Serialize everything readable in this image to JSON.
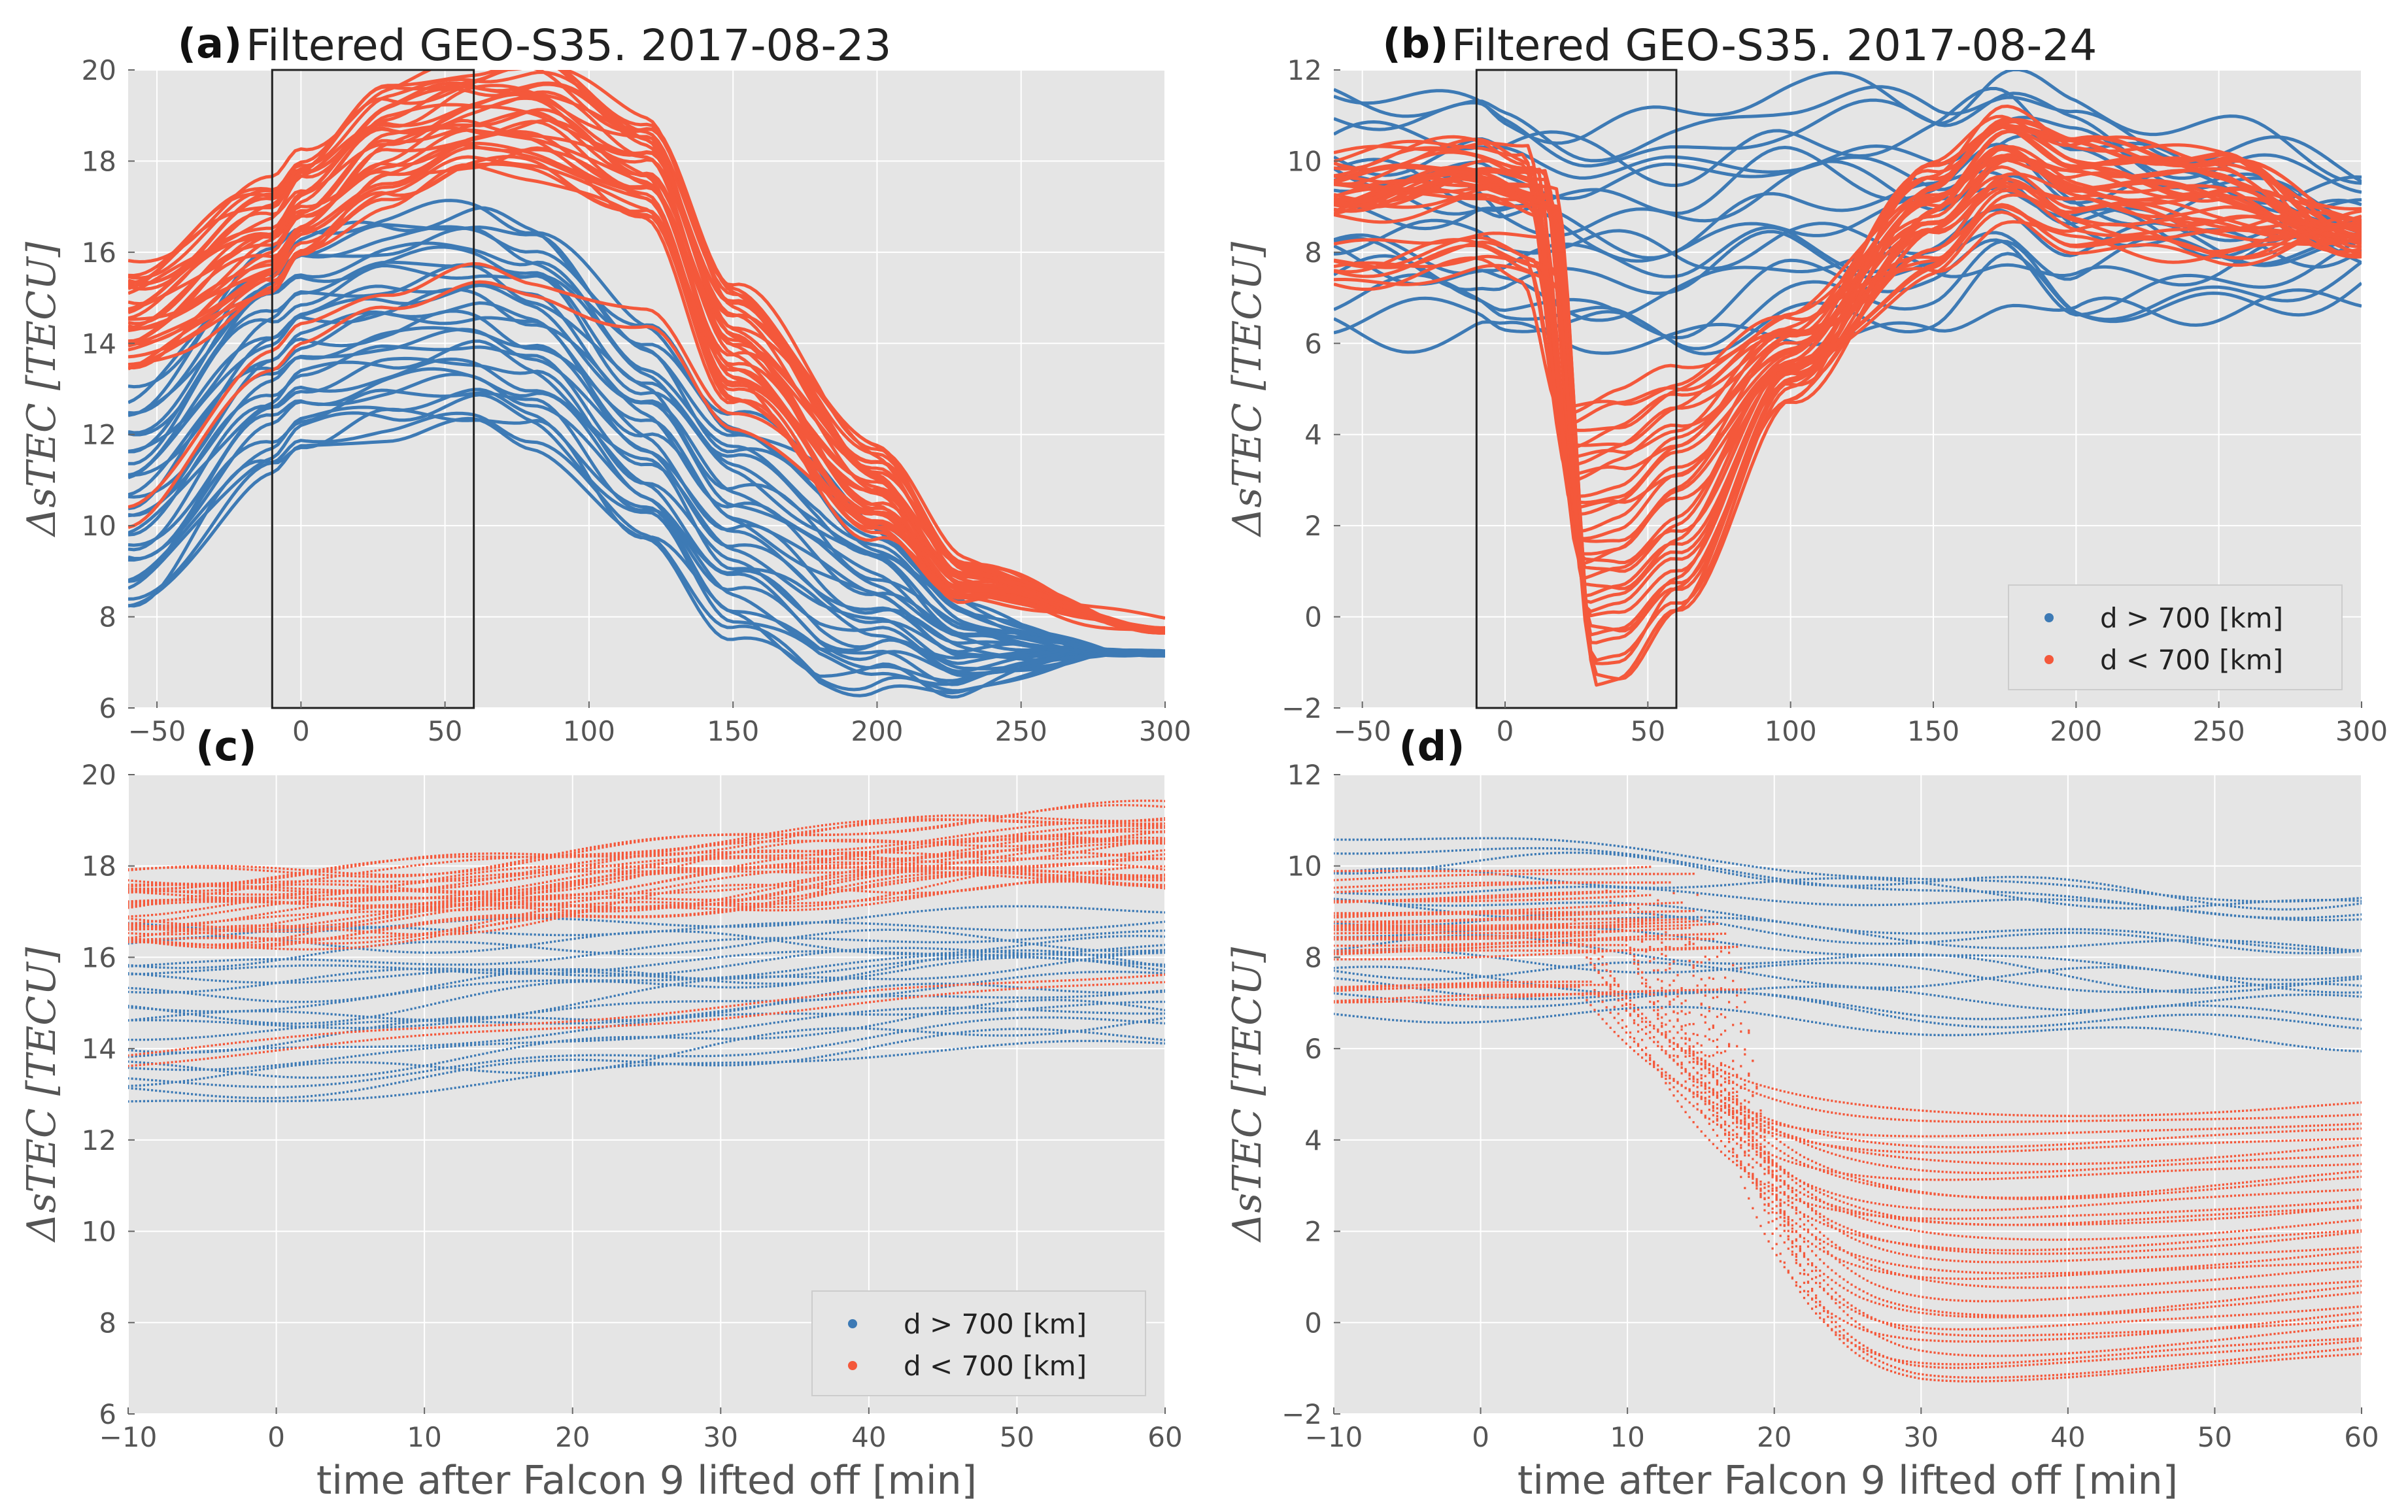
{
  "colors": {
    "far": "#3d7ab5",
    "near": "#f4583b",
    "plot_bg": "#e5e5e5",
    "grid": "#ffffff",
    "window_box": "#222222"
  },
  "xlabel_bottom": "time after Falcon 9 lifted off [min]",
  "legend": {
    "far": "d > 700 [km]",
    "near": "d < 700 [km]"
  },
  "chart_data": [
    {
      "id": "a",
      "type": "line",
      "letter": "(a)",
      "title": "Filtered GEO-S35. 2017-08-23",
      "ylabel": "ΔsTEC [TECU]",
      "xlim": [
        -60,
        300
      ],
      "ylim": [
        6,
        20
      ],
      "xticks": [
        -50,
        0,
        50,
        100,
        150,
        200,
        250,
        300
      ],
      "yticks": [
        6,
        8,
        10,
        12,
        14,
        16,
        18,
        20
      ],
      "window": [
        -10,
        60
      ],
      "series_groups": [
        {
          "name": "d > 700 [km]",
          "color": "#3d7ab5",
          "count": 30,
          "base_x": [
            -60,
            -10,
            0,
            30,
            60,
            80,
            120,
            150,
            200,
            230,
            300
          ],
          "base_y": [
            10.5,
            13.5,
            14.0,
            14.4,
            14.6,
            14.2,
            12.0,
            10.0,
            8.3,
            7.3,
            7.2
          ],
          "spread": 2.4
        },
        {
          "name": "d < 700 [km]",
          "color": "#f4583b",
          "count": 30,
          "base_x": [
            -60,
            -10,
            0,
            30,
            60,
            80,
            120,
            150,
            200,
            230,
            300
          ],
          "base_y": [
            14.5,
            16.3,
            17.0,
            18.4,
            18.9,
            19.0,
            17.8,
            14.0,
            10.8,
            8.8,
            7.7
          ],
          "spread": 1.2,
          "low_tail": {
            "count": 2,
            "base_y": [
              10.0,
              13.5,
              14.0,
              14.8,
              15.3,
              15.0,
              14.3,
              12.2,
              10.0,
              8.5,
              7.6
            ]
          }
        }
      ]
    },
    {
      "id": "b",
      "type": "line",
      "letter": "(b)",
      "title": "Filtered GEO-S35. 2017-08-24",
      "ylabel": "ΔsTEC [TECU]",
      "xlim": [
        -60,
        300
      ],
      "ylim": [
        -2,
        12
      ],
      "xticks": [
        -50,
        0,
        50,
        100,
        150,
        200,
        250,
        300
      ],
      "yticks": [
        -2,
        0,
        2,
        4,
        6,
        8,
        10,
        12
      ],
      "window": [
        -10,
        60
      ],
      "legend_loc": "lower right",
      "series_groups": [
        {
          "name": "d > 700 [km]",
          "color": "#3d7ab5",
          "count": 18,
          "base_x": [
            -60,
            -10,
            0,
            30,
            60,
            100,
            150,
            175,
            200,
            250,
            300
          ],
          "base_y": [
            9.0,
            8.8,
            8.6,
            8.4,
            8.3,
            9.0,
            8.8,
            9.6,
            8.8,
            8.6,
            8.5
          ],
          "spread": 2.5
        },
        {
          "name": "d < 700 [km]",
          "color": "#f4583b",
          "count": 34,
          "base_x": [
            -60,
            -10,
            0,
            10,
            20,
            30,
            40,
            60,
            100,
            150,
            175,
            200,
            250,
            300
          ],
          "depth_range": [
            4.6,
            -1.4
          ],
          "start_range": [
            7.2,
            10.2
          ]
        }
      ]
    },
    {
      "id": "c",
      "type": "scatter",
      "letter": "(c)",
      "title": "",
      "ylabel": "ΔsTEC [TECU]",
      "xlabel": "time after Falcon 9 lifted off [min]",
      "xlim": [
        -10,
        60
      ],
      "ylim": [
        6,
        20
      ],
      "xticks": [
        -10,
        0,
        10,
        20,
        30,
        40,
        50,
        60
      ],
      "yticks": [
        6,
        8,
        10,
        12,
        14,
        16,
        18,
        20
      ],
      "legend_loc": "lower right",
      "series_groups": [
        {
          "name": "d > 700 [km]",
          "color": "#3d7ab5",
          "count": 22,
          "start_range": [
            12.8,
            16.6
          ],
          "end_range": [
            14.0,
            17.2
          ]
        },
        {
          "name": "d < 700 [km]",
          "color": "#f4583b",
          "count": 30,
          "start_range": [
            16.2,
            17.8
          ],
          "end_range": [
            17.4,
            19.4
          ],
          "low_tail": {
            "count": 2,
            "start": 13.7,
            "end": 15.5
          }
        }
      ]
    },
    {
      "id": "d",
      "type": "scatter",
      "letter": "(d)",
      "title": "",
      "ylabel": "ΔsTEC [TECU]",
      "xlabel": "time after Falcon 9 lifted off [min]",
      "xlim": [
        -10,
        60
      ],
      "ylim": [
        -2,
        12
      ],
      "xticks": [
        -10,
        0,
        10,
        20,
        30,
        40,
        50,
        60
      ],
      "yticks": [
        -2,
        0,
        2,
        4,
        6,
        8,
        10,
        12
      ],
      "series_groups": [
        {
          "name": "d > 700 [km]",
          "color": "#3d7ab5",
          "count": 16,
          "start_range": [
            6.8,
            10.6
          ],
          "end_range": [
            6.0,
            10.0
          ]
        },
        {
          "name": "d < 700 [km]",
          "color": "#f4583b",
          "count": 32,
          "start_range": [
            7.0,
            10.0
          ],
          "end_range": [
            -0.5,
            5.0
          ],
          "drop_time_range": [
            6,
            20
          ],
          "min_range": [
            -1.6,
            4.6
          ]
        }
      ]
    }
  ]
}
